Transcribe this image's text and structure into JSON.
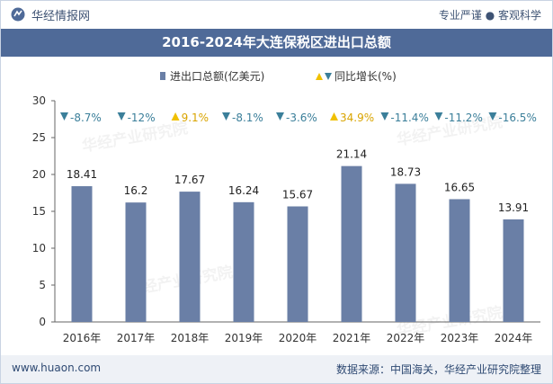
{
  "header": {
    "brand": "华经情报网",
    "tagline": "专业严谨 ● 客观科学"
  },
  "title": "2016-2024年大连保税区进出口总额",
  "footer": {
    "site": "www.huaon.com",
    "source": "数据来源：中国海关，华经产业研究院整理"
  },
  "watermark": "华经产业研究院",
  "colors": {
    "bar": "#6a7fa6",
    "title_bg": "#4f6a98",
    "down": "#3b7f9a",
    "up": "#f0c000"
  },
  "chart_data": {
    "type": "bar",
    "title": "2016-2024年大连保税区进出口总额",
    "categories": [
      "2016年",
      "2017年",
      "2018年",
      "2019年",
      "2020年",
      "2021年",
      "2022年",
      "2023年",
      "2024年"
    ],
    "series": [
      {
        "name": "进出口总额(亿美元)",
        "values": [
          18.41,
          16.2,
          17.67,
          16.24,
          15.67,
          21.14,
          18.73,
          16.65,
          13.91
        ]
      }
    ],
    "value_labels": [
      "18.41",
      "16.2",
      "17.67",
      "16.24",
      "15.67",
      "21.14",
      "18.73",
      "16.65",
      "13.91"
    ],
    "growth": {
      "name": "同比增长(%)",
      "labels": [
        "-8.7%",
        "-12%",
        "9.1%",
        "-8.1%",
        "-3.6%",
        "34.9%",
        "-11.4%",
        "-11.2%",
        "-16.5%"
      ],
      "direction": [
        "down",
        "down",
        "up",
        "down",
        "down",
        "up",
        "down",
        "down",
        "down"
      ]
    },
    "legend_position": "top-center",
    "ylim": [
      0,
      30
    ],
    "yticks": [
      0,
      5,
      10,
      15,
      20,
      25,
      30
    ],
    "xlabel": "",
    "ylabel": ""
  }
}
